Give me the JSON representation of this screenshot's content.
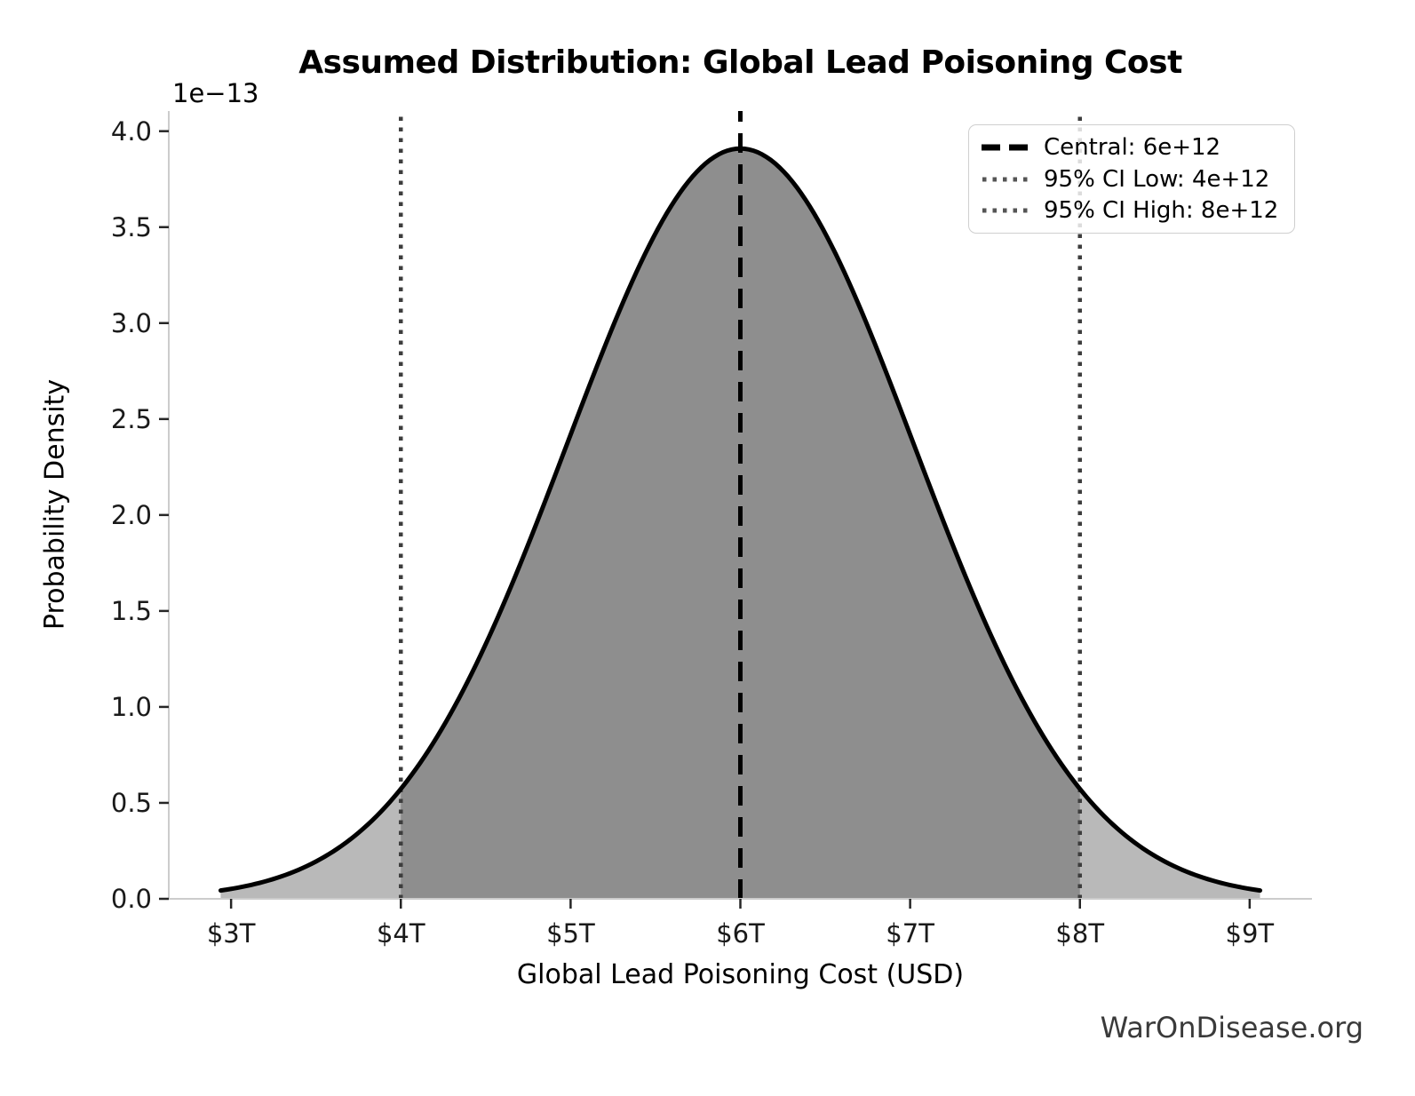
{
  "watermark": "WarOnDisease.org",
  "chart_data": {
    "type": "area",
    "title": "Assumed Distribution: Global Lead Poisoning Cost",
    "xlabel": "Global Lead Poisoning Cost (USD)",
    "ylabel": "Probability Density",
    "y_scale_offset_label": "1e−13",
    "x_units": "trillions of USD",
    "xlim": [
      2.633,
      9.367
    ],
    "ylim_1e13": [
      0,
      4.105
    ],
    "x_ticks": {
      "values": [
        3,
        4,
        5,
        6,
        7,
        8,
        9
      ],
      "labels": [
        "$3T",
        "$4T",
        "$5T",
        "$6T",
        "$7T",
        "$8T",
        "$9T"
      ]
    },
    "y_ticks": {
      "values": [
        0,
        0.5,
        1.0,
        1.5,
        2.0,
        2.5,
        3.0,
        3.5,
        4.0
      ],
      "labels": [
        "0.0",
        "0.5",
        "1.0",
        "1.5",
        "2.0",
        "2.5",
        "3.0",
        "3.5",
        "4.0"
      ]
    },
    "distribution": {
      "family": "normal",
      "mean": 6,
      "sigma": 1.0204,
      "central": 6,
      "ci95_low": 4,
      "ci95_high": 8,
      "peak_density_1e13": 3.9096,
      "plot_range_sigma": 3
    },
    "series": [
      {
        "name": "probability density curve",
        "x_trillions": [
          3,
          3.5,
          4,
          4.5,
          5,
          5.5,
          6,
          6.5,
          7,
          7.5,
          8,
          8.5,
          9
        ],
        "density_1e13": [
          0.05,
          0.19,
          0.57,
          1.33,
          2.42,
          3.47,
          3.91,
          3.47,
          2.42,
          1.33,
          0.57,
          0.19,
          0.05
        ]
      }
    ],
    "vlines": [
      {
        "x": 6,
        "style": "dashed",
        "color": "#000000",
        "label": "Central: 6e+12"
      },
      {
        "x": 4,
        "style": "dotted",
        "color": "#3d3d3d",
        "label": "95% CI Low: 4e+12"
      },
      {
        "x": 8,
        "style": "dotted",
        "color": "#3d3d3d",
        "label": "95% CI High: 8e+12"
      }
    ],
    "legend": {
      "position": "upper right",
      "items": [
        {
          "label": "Central: 6e+12",
          "style": "dashed"
        },
        {
          "label": "95% CI Low: 4e+12",
          "style": "dotted"
        },
        {
          "label": "95% CI High: 8e+12",
          "style": "dotted"
        }
      ]
    },
    "colors": {
      "curve": "#000000",
      "ci_fill": "#8e8e8e",
      "tail_fill": "#b9b9b9",
      "dashed_line": "#000000",
      "dotted_line": "#3d3d3d",
      "spine": "#cccccc",
      "tick": "#262626",
      "text": "#000000",
      "watermark": "#3a3a3a"
    }
  }
}
